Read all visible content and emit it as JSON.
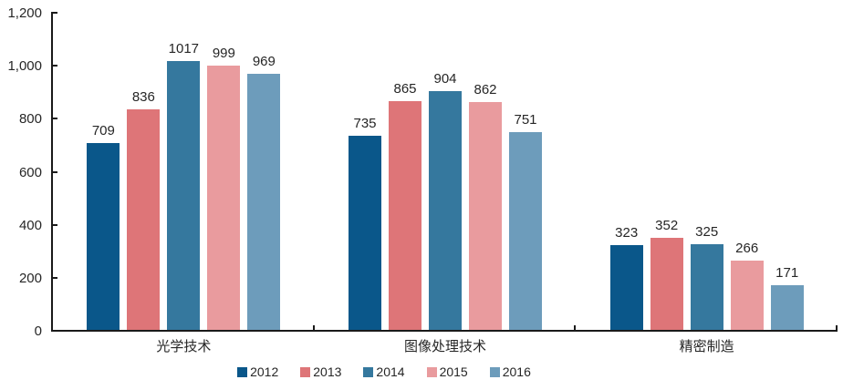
{
  "chart_data": {
    "type": "bar",
    "title": "",
    "xlabel": "",
    "ylabel": "",
    "categories": [
      "光学技术",
      "图像处理技术",
      "精密制造"
    ],
    "series": [
      {
        "name": "2012",
        "color": "#0a578a",
        "values": [
          709,
          735,
          323
        ]
      },
      {
        "name": "2013",
        "color": "#de7578",
        "values": [
          836,
          865,
          352
        ]
      },
      {
        "name": "2014",
        "color": "#35789e",
        "values": [
          1017,
          904,
          325
        ]
      },
      {
        "name": "2015",
        "color": "#e99b9e",
        "values": [
          999,
          862,
          266
        ]
      },
      {
        "name": "2016",
        "color": "#6d9cbb",
        "values": [
          969,
          751,
          171
        ]
      }
    ],
    "ylim": [
      0,
      1200
    ],
    "y_ticks": [
      {
        "label": "0",
        "value": 0
      },
      {
        "label": "200",
        "value": 200
      },
      {
        "label": "400",
        "value": 400
      },
      {
        "label": "600",
        "value": 600
      },
      {
        "label": "800",
        "value": 800
      },
      {
        "label": "1,000",
        "value": 1000
      },
      {
        "label": "1,200",
        "value": 1200
      }
    ],
    "grid": false,
    "data_labels": true,
    "legend_position": "bottom"
  },
  "colors": {
    "axis": "#1a1a1a",
    "text": "#262626",
    "background": "#ffffff"
  }
}
